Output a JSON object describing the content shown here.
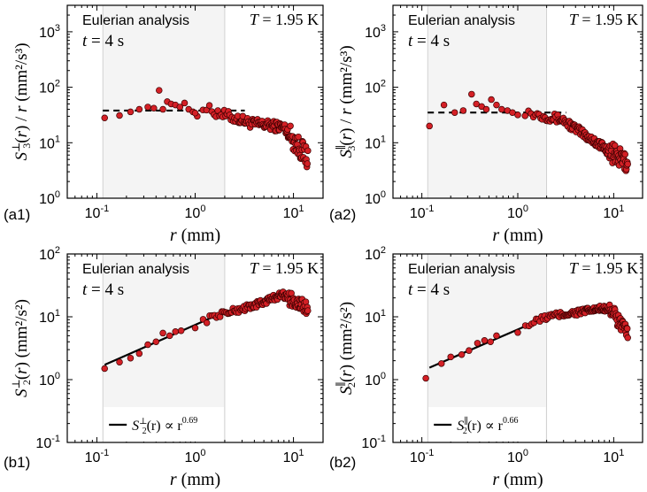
{
  "colors": {
    "marker_fill": "#d42026",
    "marker_edge": "#3a0000",
    "shade": "#f4f4f4",
    "axis": "#000000"
  },
  "chart_data": [
    {
      "id": "a1",
      "type": "scatter",
      "panel_label": "(a1)",
      "annotation": "Eulerian analysis",
      "time_label": "t = 4 s",
      "temp_label": "T = 1.95 K",
      "xlabel": "r (mm)",
      "ylabel": "S⊥3(r) / r (mm²/s³)",
      "xscale": "log",
      "yscale": "log",
      "xlim": [
        0.05,
        20
      ],
      "ylim": [
        1,
        3000
      ],
      "x_ticks": [
        {
          "v": 0.1,
          "base": "10",
          "exp": "-1"
        },
        {
          "v": 1,
          "base": "10",
          "exp": "0"
        },
        {
          "v": 10,
          "base": "10",
          "exp": "1"
        }
      ],
      "y_ticks": [
        {
          "v": 1,
          "base": "10",
          "exp": "0"
        },
        {
          "v": 10,
          "base": "10",
          "exp": "1"
        },
        {
          "v": 100,
          "base": "10",
          "exp": "2"
        },
        {
          "v": 1000,
          "base": "10",
          "exp": "3"
        }
      ],
      "shade_range": [
        0.115,
        2.0
      ],
      "dashed_line": {
        "x": [
          0.115,
          3.2
        ],
        "y": 38
      },
      "series_model": {
        "kind": "s3_perp",
        "x_start": 0.12,
        "x_end": 14.0,
        "n": 130,
        "scatter": 0.09
      },
      "points": [
        [
          0.12,
          28
        ],
        [
          0.17,
          31
        ],
        [
          0.22,
          36
        ],
        [
          0.27,
          40
        ],
        [
          0.33,
          44
        ],
        [
          0.38,
          42
        ],
        [
          0.43,
          88
        ],
        [
          0.47,
          40
        ],
        [
          0.52,
          55
        ],
        [
          0.57,
          50
        ],
        [
          0.63,
          48
        ],
        [
          0.7,
          44
        ],
        [
          0.78,
          52
        ],
        [
          0.86,
          40
        ],
        [
          0.95,
          36
        ],
        [
          1.05,
          30
        ]
      ]
    },
    {
      "id": "a2",
      "type": "scatter",
      "panel_label": "(a2)",
      "annotation": "Eulerian analysis",
      "time_label": "t = 4 s",
      "temp_label": "T = 1.95 K",
      "xlabel": "r (mm)",
      "ylabel": "S∥3(r) / r (mm²/s³)",
      "xscale": "log",
      "yscale": "log",
      "xlim": [
        0.05,
        20
      ],
      "ylim": [
        1,
        3000
      ],
      "x_ticks": [
        {
          "v": 0.1,
          "base": "10",
          "exp": "-1"
        },
        {
          "v": 1,
          "base": "10",
          "exp": "0"
        },
        {
          "v": 10,
          "base": "10",
          "exp": "1"
        }
      ],
      "y_ticks": [
        {
          "v": 1,
          "base": "10",
          "exp": "0"
        },
        {
          "v": 10,
          "base": "10",
          "exp": "1"
        },
        {
          "v": 100,
          "base": "10",
          "exp": "2"
        },
        {
          "v": 1000,
          "base": "10",
          "exp": "3"
        }
      ],
      "shade_range": [
        0.115,
        2.0
      ],
      "dashed_line": {
        "x": [
          0.115,
          3.2
        ],
        "y": 35
      },
      "series_model": {
        "kind": "s3_par",
        "x_start": 0.12,
        "x_end": 14.0,
        "n": 140,
        "scatter": 0.08
      },
      "points": [
        [
          0.12,
          20
        ],
        [
          0.17,
          48
        ],
        [
          0.22,
          35
        ],
        [
          0.27,
          38
        ],
        [
          0.33,
          75
        ],
        [
          0.37,
          50
        ],
        [
          0.42,
          45
        ],
        [
          0.47,
          40
        ],
        [
          0.53,
          60
        ],
        [
          0.6,
          48
        ],
        [
          0.68,
          40
        ],
        [
          0.78,
          38
        ],
        [
          0.88,
          35
        ]
      ]
    },
    {
      "id": "b1",
      "type": "scatter",
      "panel_label": "(b1)",
      "annotation": "Eulerian analysis",
      "time_label": "t = 4 s",
      "temp_label": "T = 1.95 K",
      "xlabel": "r (mm)",
      "ylabel": "S⊥2(r) (mm²/s²)",
      "xscale": "log",
      "yscale": "log",
      "xlim": [
        0.05,
        20
      ],
      "ylim": [
        0.1,
        100
      ],
      "x_ticks": [
        {
          "v": 0.1,
          "base": "10",
          "exp": "-1"
        },
        {
          "v": 1,
          "base": "10",
          "exp": "0"
        },
        {
          "v": 10,
          "base": "10",
          "exp": "1"
        }
      ],
      "y_ticks": [
        {
          "v": 0.1,
          "base": "10",
          "exp": "-1"
        },
        {
          "v": 1,
          "base": "10",
          "exp": "0"
        },
        {
          "v": 10,
          "base": "10",
          "exp": "1"
        },
        {
          "v": 100,
          "base": "10",
          "exp": "2"
        }
      ],
      "shade_range": [
        0.115,
        2.0
      ],
      "fit_line": {
        "x": [
          0.12,
          2.0
        ],
        "y0": 1.72,
        "slope": 0.69
      },
      "legend": {
        "label": "S⊥2(r) ∝ r^0.69",
        "position": "bottom-left"
      },
      "series_model": {
        "kind": "s2_perp",
        "x_start": 0.12,
        "x_end": 14.0,
        "n": 125,
        "scatter": 0.05
      },
      "points": [
        [
          0.12,
          1.5
        ],
        [
          0.17,
          1.9
        ],
        [
          0.22,
          2.2
        ],
        [
          0.27,
          2.6
        ],
        [
          0.33,
          3.6
        ],
        [
          0.4,
          4.0
        ],
        [
          0.47,
          5.5
        ],
        [
          0.55,
          5.0
        ],
        [
          0.63,
          5.8
        ],
        [
          0.72,
          6.0
        ]
      ]
    },
    {
      "id": "b2",
      "type": "scatter",
      "panel_label": "(b2)",
      "annotation": "Eulerian analysis",
      "time_label": "t = 4 s",
      "temp_label": "T = 1.95 K",
      "xlabel": "r (mm)",
      "ylabel": "S∥2(r) (mm²/s²)",
      "xscale": "log",
      "yscale": "log",
      "xlim": [
        0.05,
        20
      ],
      "ylim": [
        0.1,
        100
      ],
      "x_ticks": [
        {
          "v": 0.1,
          "base": "10",
          "exp": "-1"
        },
        {
          "v": 1,
          "base": "10",
          "exp": "0"
        },
        {
          "v": 10,
          "base": "10",
          "exp": "1"
        }
      ],
      "y_ticks": [
        {
          "v": 0.1,
          "base": "10",
          "exp": "-1"
        },
        {
          "v": 1,
          "base": "10",
          "exp": "0"
        },
        {
          "v": 10,
          "base": "10",
          "exp": "1"
        },
        {
          "v": 100,
          "base": "10",
          "exp": "2"
        }
      ],
      "shade_range": [
        0.115,
        2.0
      ],
      "fit_line": {
        "x": [
          0.12,
          2.0
        ],
        "y0": 1.55,
        "slope": 0.66
      },
      "legend": {
        "label": "S∥2(r) ∝ r^0.66",
        "position": "bottom-left"
      },
      "series_model": {
        "kind": "s2_par",
        "x_start": 0.12,
        "x_end": 14.0,
        "n": 130,
        "scatter": 0.05
      },
      "points": [
        [
          0.11,
          1.05
        ],
        [
          0.16,
          1.8
        ],
        [
          0.2,
          2.3
        ],
        [
          0.26,
          2.5
        ],
        [
          0.31,
          2.9
        ],
        [
          0.38,
          3.8
        ],
        [
          0.45,
          4.2
        ],
        [
          0.52,
          4.0
        ],
        [
          0.6,
          5.0
        ]
      ]
    }
  ]
}
